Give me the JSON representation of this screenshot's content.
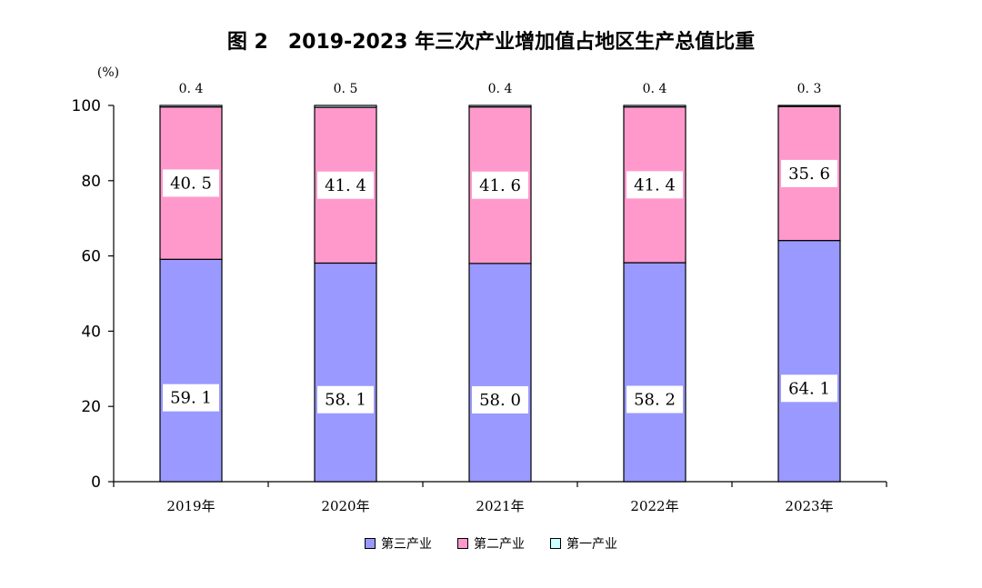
{
  "title": "图 2　2019-2023 年三次产业增加值占地区生产总值比重",
  "chart_data": {
    "type": "bar",
    "stacked": true,
    "categories": [
      "2019年",
      "2020年",
      "2021年",
      "2022年",
      "2023年"
    ],
    "series": [
      {
        "name": "第三产业",
        "color": "#9999ff",
        "values": [
          59.1,
          58.1,
          58.0,
          58.2,
          64.1
        ],
        "labels": [
          "59. 1",
          "58. 1",
          "58. 0",
          "58. 2",
          "64. 1"
        ]
      },
      {
        "name": "第二产业",
        "color": "#ff99cc",
        "values": [
          40.5,
          41.4,
          41.6,
          41.4,
          35.6
        ],
        "labels": [
          "40. 5",
          "41. 4",
          "41. 6",
          "41. 4",
          "35. 6"
        ]
      },
      {
        "name": "第一产业",
        "color": "#ccffff",
        "values": [
          0.4,
          0.5,
          0.4,
          0.4,
          0.3
        ],
        "labels": [
          "0. 4",
          "0. 5",
          "0. 4",
          "0. 4",
          "0. 3"
        ]
      }
    ],
    "y_unit": "(%)",
    "ylim": [
      0,
      100
    ],
    "yticks": [
      0,
      20,
      40,
      60,
      80,
      100
    ],
    "legend_position": "bottom"
  }
}
